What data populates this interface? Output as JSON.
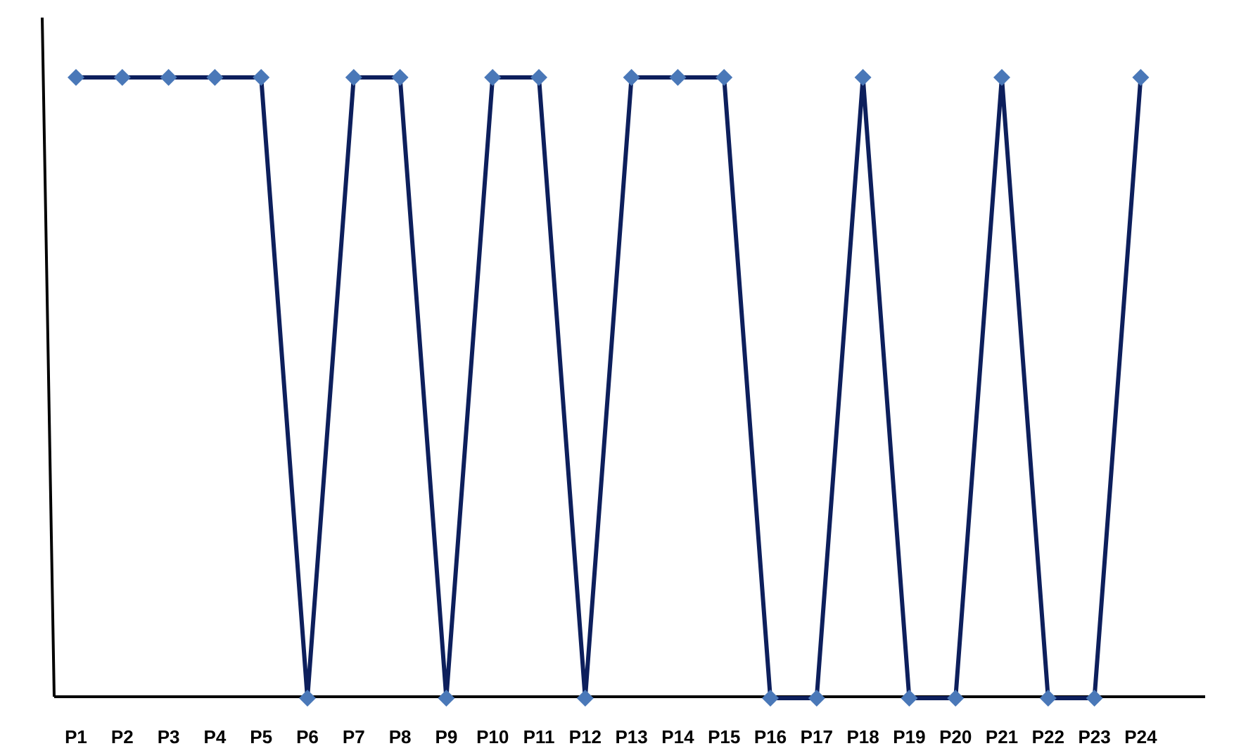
{
  "chart_data": {
    "type": "line",
    "title": "",
    "xlabel": "",
    "ylabel": "",
    "categories": [
      "P1",
      "P2",
      "P3",
      "P4",
      "P5",
      "P6",
      "P7",
      "P8",
      "P9",
      "P10",
      "P11",
      "P12",
      "P13",
      "P14",
      "P15",
      "P16",
      "P17",
      "P18",
      "P19",
      "P20",
      "P21",
      "P22",
      "P23",
      "P24"
    ],
    "series": [
      {
        "values": [
          1,
          1,
          1,
          1,
          1,
          0,
          1,
          1,
          0,
          1,
          1,
          0,
          1,
          1,
          1,
          0,
          0,
          1,
          0,
          0,
          1,
          0,
          0,
          1
        ]
      }
    ],
    "ylim": [
      0,
      1
    ],
    "grid": false,
    "legend": "none",
    "colors": {
      "line": "#0d1f5c",
      "marker": "#4a78b8",
      "axis": "#000000"
    },
    "marker": "diamond"
  }
}
